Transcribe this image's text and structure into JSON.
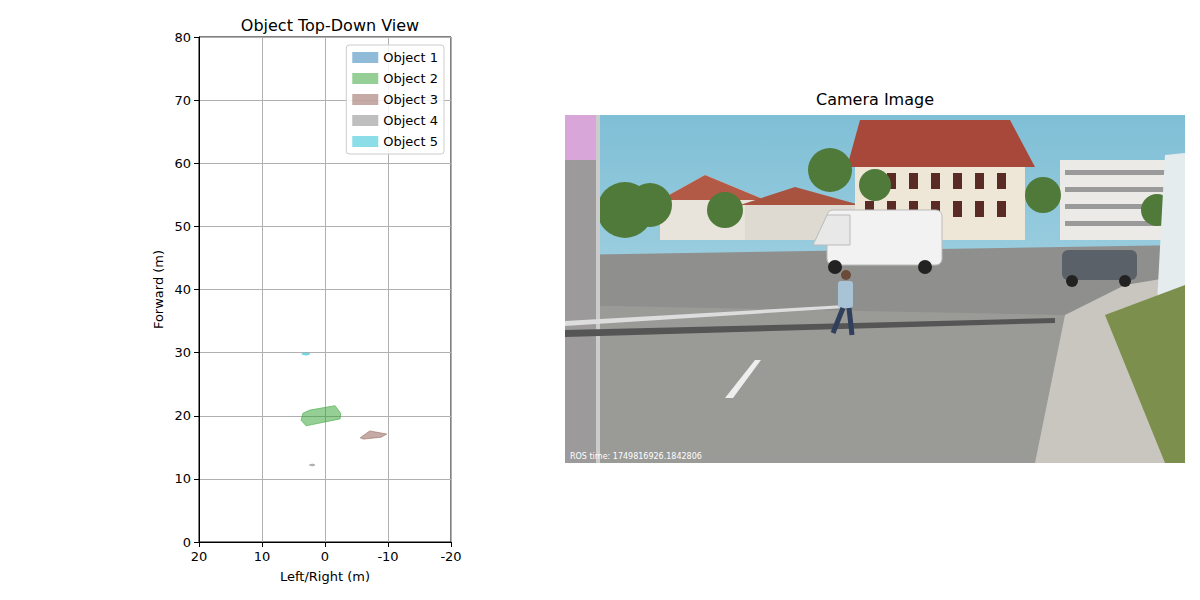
{
  "chart_data": {
    "type": "polygon",
    "title": "Object Top-Down View",
    "x_label": "Left/Right (m)",
    "y_label": "Forward (m)",
    "xlim": [
      20,
      -20
    ],
    "xticks": [
      20,
      10,
      0,
      -10,
      -20
    ],
    "ylim": [
      0,
      80
    ],
    "yticks": [
      0,
      10,
      20,
      30,
      40,
      50,
      60,
      70,
      80
    ],
    "grid": true,
    "legend": "upper right",
    "series": [
      {
        "name": "Object 1",
        "color": "#1f77b4",
        "x": [],
        "y": []
      },
      {
        "name": "Object 2",
        "color": "#2ca02c",
        "x": [
          3.5,
          3.8,
          3.0,
          -2.4,
          -2.5,
          -1.6,
          2.4
        ],
        "y": [
          20.4,
          19.3,
          18.4,
          19.5,
          20.4,
          21.6,
          20.9
        ]
      },
      {
        "name": "Object 3",
        "color": "#8c564b",
        "x": [
          -5.6,
          -7.1,
          -9.8,
          -8.9,
          -6.1
        ],
        "y": [
          16.5,
          17.6,
          17.1,
          16.6,
          16.3
        ]
      },
      {
        "name": "Object 4",
        "color": "#7f7f7f",
        "x": [
          2.5,
          2.0,
          1.6,
          2.0
        ],
        "y": [
          12.2,
          12.35,
          12.2,
          12.05
        ]
      },
      {
        "name": "Object 5",
        "color": "#17becf",
        "x": [
          3.7,
          3.0,
          2.4,
          3.0
        ],
        "y": [
          29.8,
          29.95,
          29.8,
          29.6
        ]
      }
    ]
  },
  "camera_image": {
    "title": "Camera Image",
    "overlay_text": "ROS time: 1749816926.1842806"
  }
}
